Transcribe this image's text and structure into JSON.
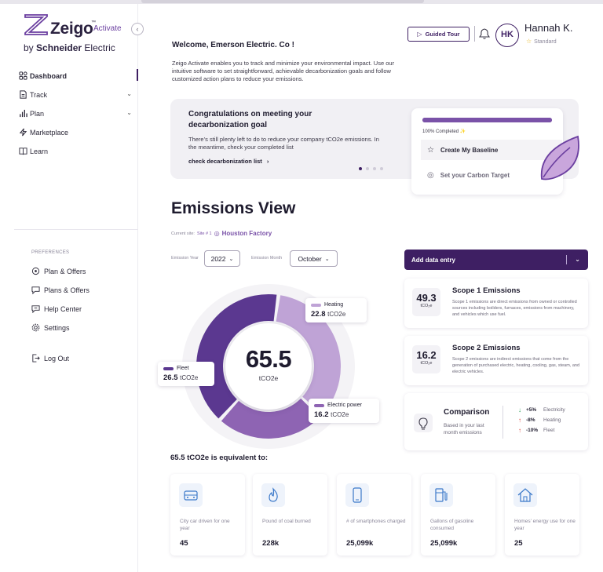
{
  "brand": {
    "name": "Zeigo",
    "tm": "™",
    "product": "Activate",
    "by": "by",
    "company_bold": "Schneider",
    "company_light": "Electric"
  },
  "sidebar": {
    "items": [
      {
        "label": "Dashboard",
        "icon": "dashboard-icon",
        "active": true
      },
      {
        "label": "Track",
        "icon": "document-icon",
        "expandable": true
      },
      {
        "label": "Plan",
        "icon": "bar-chart-icon",
        "expandable": true
      },
      {
        "label": "Marketplace",
        "icon": "lightning-icon"
      },
      {
        "label": "Learn",
        "icon": "book-icon"
      }
    ],
    "preferences_title": "PREFERENCES",
    "preferences": [
      {
        "label": "Plan & Offers",
        "icon": "target-icon"
      },
      {
        "label": "Plans & Offers",
        "icon": "chat-icon"
      },
      {
        "label": "Help Center",
        "icon": "help-chat-icon"
      },
      {
        "label": "Settings",
        "icon": "gear-icon"
      }
    ],
    "logout": "Log Out"
  },
  "header": {
    "welcome": "Welcome, Emerson Electric. Co !",
    "intro": "Zeigo Activate enables you to track and minimize your environmental impact. Use our intuitive software to set straightforward, achievable decarbonization goals and follow customized action plans to reduce your emissions.",
    "guided_tour": "Guided Tour",
    "user_initials": "HK",
    "user_name": "Hannah K.",
    "user_tier": "Standard"
  },
  "congrats": {
    "title": "Congratulations on meeting your decarbonization goal",
    "body": "There’s still plenty left to do to reduce your company tCO2e emissions. In the meantime, check your completed list",
    "link": "check decarbonization list",
    "progress_label": "100% Completed",
    "progress": 1.0,
    "step1": "Create My Baseline",
    "step2": "Set your Carbon Target",
    "slides": 4,
    "active_slide": 1
  },
  "emissions": {
    "title": "Emissions View",
    "site_label": "Current site:",
    "site_num": "Site # 1",
    "site_name": "Houston Factory",
    "year_label": "Emission Year",
    "year_value": "2022",
    "month_label": "Emission Month",
    "month_value": "October",
    "total": "65.5",
    "unit": "tCO2e",
    "segments": [
      {
        "name": "Heating",
        "value": 22.8,
        "color": "#bfa3d6"
      },
      {
        "name": "Electric power",
        "value": 16.2,
        "color": "#8e64b3"
      },
      {
        "name": "Fleet",
        "value": 26.5,
        "color": "#5b3890"
      }
    ],
    "heating_label": "Heating",
    "heating_value": "22.8",
    "heating_unit": "tCO2e",
    "electric_label": "Electric power",
    "electric_value": "16.2",
    "electric_unit": "tCO2e",
    "fleet_label": "Fleet",
    "fleet_value": "26.5",
    "fleet_unit": "tCO2e"
  },
  "add_entry": "Add data entry",
  "scope1": {
    "value": "49.3",
    "unit": "tCO₂e",
    "title": "Scope 1 Emissions",
    "desc": "Scope 1 emissions are direct emissions from owned or controlled sources including boilders, furnaces, emissions from machinery, and vehicles which use fuel."
  },
  "scope2": {
    "value": "16.2",
    "unit": "tCO₂e",
    "title": "Scope 2 Emissions",
    "desc": "Scope 2 emissions are indirect emissions that come from the generation of purchased electric, heating, cooling, gas, steam, and electric vehicles."
  },
  "comparison": {
    "title": "Comparison",
    "sub": "Based in your last month emissions",
    "rows": [
      {
        "dir": "down",
        "pct": "+5%",
        "label": "Electricity",
        "color": "#2f9e5a"
      },
      {
        "dir": "up",
        "pct": "-8%",
        "label": "Heating",
        "color": "#d9453a"
      },
      {
        "dir": "up",
        "pct": "-10%",
        "label": "Fleet",
        "color": "#d9453a"
      }
    ]
  },
  "equivalent": {
    "title": "65.5 tCO2e is equivalent to:",
    "items": [
      {
        "icon": "car-icon",
        "label": "City car driven for one year",
        "value": "45"
      },
      {
        "icon": "coal-fire-icon",
        "label": "Pound of coal burned",
        "value": "228k"
      },
      {
        "icon": "smartphone-icon",
        "label": "# of smartphones charged",
        "value": "25,099k"
      },
      {
        "icon": "fuel-pump-icon",
        "label": "Gallons of gasoline consumed",
        "value": "25,099k"
      },
      {
        "icon": "home-icon",
        "label": "Homes' energy use for one year",
        "value": "25"
      }
    ]
  }
}
